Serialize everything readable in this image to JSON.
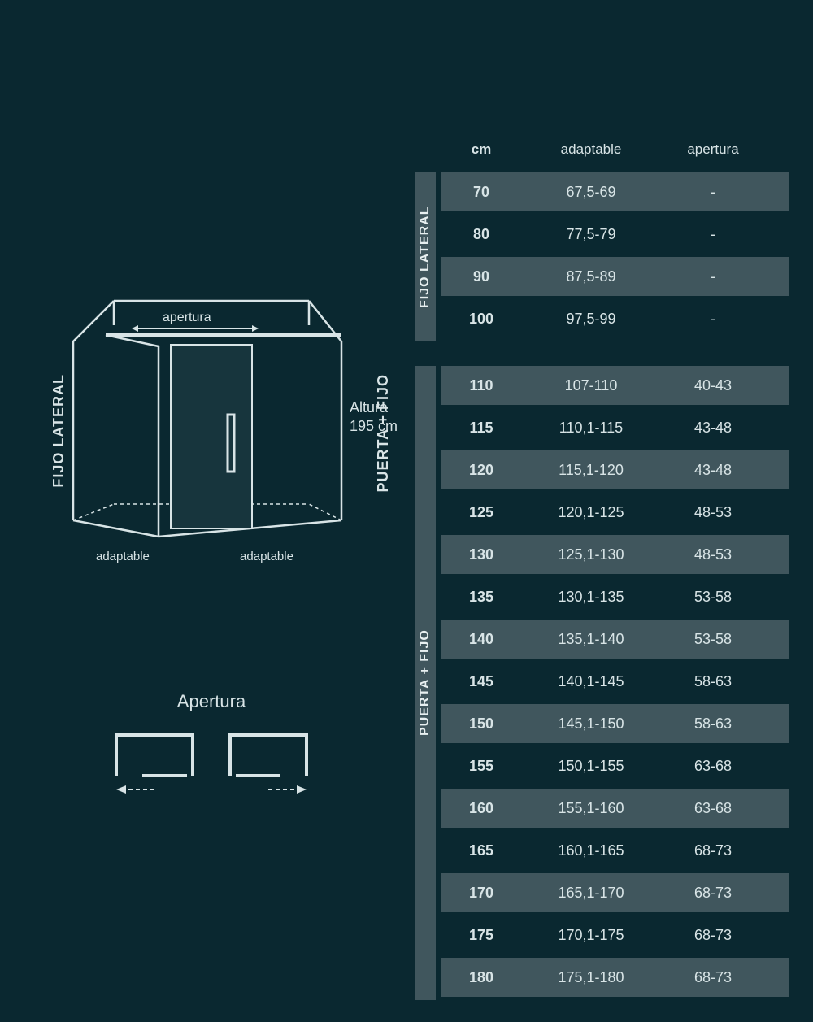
{
  "colors": {
    "background": "#0a2830",
    "row_shaded": "#40565d",
    "text": "#d8e4e6",
    "stroke": "#d8e4e6"
  },
  "diagram": {
    "left_label": "FIJO LATERAL",
    "right_label": "PUERTA + FIJO",
    "top_label": "apertura",
    "bottom_left": "adaptable",
    "bottom_right": "adaptable",
    "height_label_1": "Altura",
    "height_label_2": "195 cm"
  },
  "apertura_section": {
    "title": "Apertura"
  },
  "table_headers": {
    "c1": "cm",
    "c2": "adaptable",
    "c3": "apertura"
  },
  "fijo_lateral": {
    "label": "FIJO LATERAL",
    "rows": [
      {
        "cm": "70",
        "adaptable": "67,5-69",
        "apertura": "-",
        "shaded": true
      },
      {
        "cm": "80",
        "adaptable": "77,5-79",
        "apertura": "-",
        "shaded": false
      },
      {
        "cm": "90",
        "adaptable": "87,5-89",
        "apertura": "-",
        "shaded": true
      },
      {
        "cm": "100",
        "adaptable": "97,5-99",
        "apertura": "-",
        "shaded": false
      }
    ]
  },
  "puerta_fijo": {
    "label": "PUERTA + FIJO",
    "rows": [
      {
        "cm": "110",
        "adaptable": "107-110",
        "apertura": "40-43",
        "shaded": true
      },
      {
        "cm": "115",
        "adaptable": "110,1-115",
        "apertura": "43-48",
        "shaded": false
      },
      {
        "cm": "120",
        "adaptable": "115,1-120",
        "apertura": "43-48",
        "shaded": true
      },
      {
        "cm": "125",
        "adaptable": "120,1-125",
        "apertura": "48-53",
        "shaded": false
      },
      {
        "cm": "130",
        "adaptable": "125,1-130",
        "apertura": "48-53",
        "shaded": true
      },
      {
        "cm": "135",
        "adaptable": "130,1-135",
        "apertura": "53-58",
        "shaded": false
      },
      {
        "cm": "140",
        "adaptable": "135,1-140",
        "apertura": "53-58",
        "shaded": true
      },
      {
        "cm": "145",
        "adaptable": "140,1-145",
        "apertura": "58-63",
        "shaded": false
      },
      {
        "cm": "150",
        "adaptable": "145,1-150",
        "apertura": "58-63",
        "shaded": true
      },
      {
        "cm": "155",
        "adaptable": "150,1-155",
        "apertura": "63-68",
        "shaded": false
      },
      {
        "cm": "160",
        "adaptable": "155,1-160",
        "apertura": "63-68",
        "shaded": true
      },
      {
        "cm": "165",
        "adaptable": "160,1-165",
        "apertura": "68-73",
        "shaded": false
      },
      {
        "cm": "170",
        "adaptable": "165,1-170",
        "apertura": "68-73",
        "shaded": true
      },
      {
        "cm": "175",
        "adaptable": "170,1-175",
        "apertura": "68-73",
        "shaded": false
      },
      {
        "cm": "180",
        "adaptable": "175,1-180",
        "apertura": "68-73",
        "shaded": true
      }
    ]
  }
}
